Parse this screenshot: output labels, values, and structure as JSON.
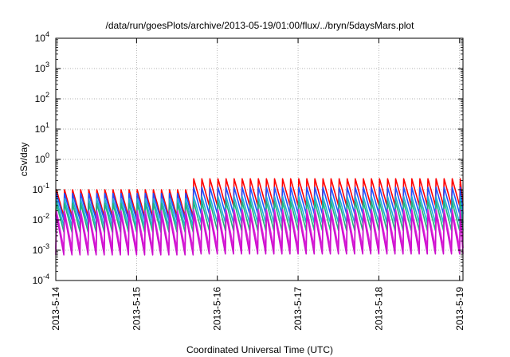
{
  "chart_data": {
    "type": "line",
    "title": "/data/run/goesPlots/archive/2013-05-19/01:00/flux/../bryn/5daysMars.plot",
    "xlabel": "Coordinated Universal Time (UTC)",
    "ylabel": "cSv/day",
    "yscale": "log",
    "ylim": [
      0.0001,
      10000
    ],
    "y_ticks": [
      {
        "value": 0.0001,
        "base": "10",
        "exp": "-4"
      },
      {
        "value": 0.001,
        "base": "10",
        "exp": "-3"
      },
      {
        "value": 0.01,
        "base": "10",
        "exp": "-2"
      },
      {
        "value": 0.1,
        "base": "10",
        "exp": "-1"
      },
      {
        "value": 1,
        "base": "10",
        "exp": "0"
      },
      {
        "value": 10,
        "base": "10",
        "exp": "1"
      },
      {
        "value": 100,
        "base": "10",
        "exp": "2"
      },
      {
        "value": 1000,
        "base": "10",
        "exp": "3"
      },
      {
        "value": 10000,
        "base": "10",
        "exp": "4"
      }
    ],
    "xlim": [
      "2013-05-14 00:00",
      "2013-05-19 01:00"
    ],
    "x_tick_labels": [
      "2013-5-14",
      "2013-5-15",
      "2013-5-16",
      "2013-5-17",
      "2013-5-18",
      "2013-5-19"
    ],
    "x_tick_dates": [
      "2013-05-14",
      "2013-05-15",
      "2013-05-16",
      "2013-05-17",
      "2013-05-18",
      "2013-05-19"
    ],
    "grid": true,
    "legend": "none",
    "pattern": {
      "description": "periodic sawtooth: sharp rise then exponential decay each orbit",
      "period_hours": 2.4,
      "onset_date": "2013-05-14 00:00"
    },
    "series": [
      {
        "color": "#ff0000",
        "peak_low": 0.1,
        "peak_high": 0.23,
        "trough_low": 0.013,
        "trough_high": 0.03
      },
      {
        "color": "#2050ff",
        "peak_low": 0.075,
        "peak_high": 0.12,
        "trough_low": 0.01,
        "trough_high": 0.016
      },
      {
        "color": "#1fb0d8",
        "peak_low": 0.05,
        "peak_high": 0.06,
        "trough_low": 0.006,
        "trough_high": 0.008
      },
      {
        "color": "#22b37a",
        "peak_low": 0.035,
        "peak_high": 0.04,
        "trough_low": 0.004,
        "trough_high": 0.0045
      },
      {
        "color": "#e020e0",
        "peak_low": 0.02,
        "peak_high": 0.022,
        "trough_low": 0.0011,
        "trough_high": 0.0012
      },
      {
        "color": "#cc10cc",
        "peak_low": 0.015,
        "peak_high": 0.016,
        "trough_low": 0.0007,
        "trough_high": 0.00075
      }
    ],
    "regime_change_date": "2013-05-15 15:30"
  }
}
